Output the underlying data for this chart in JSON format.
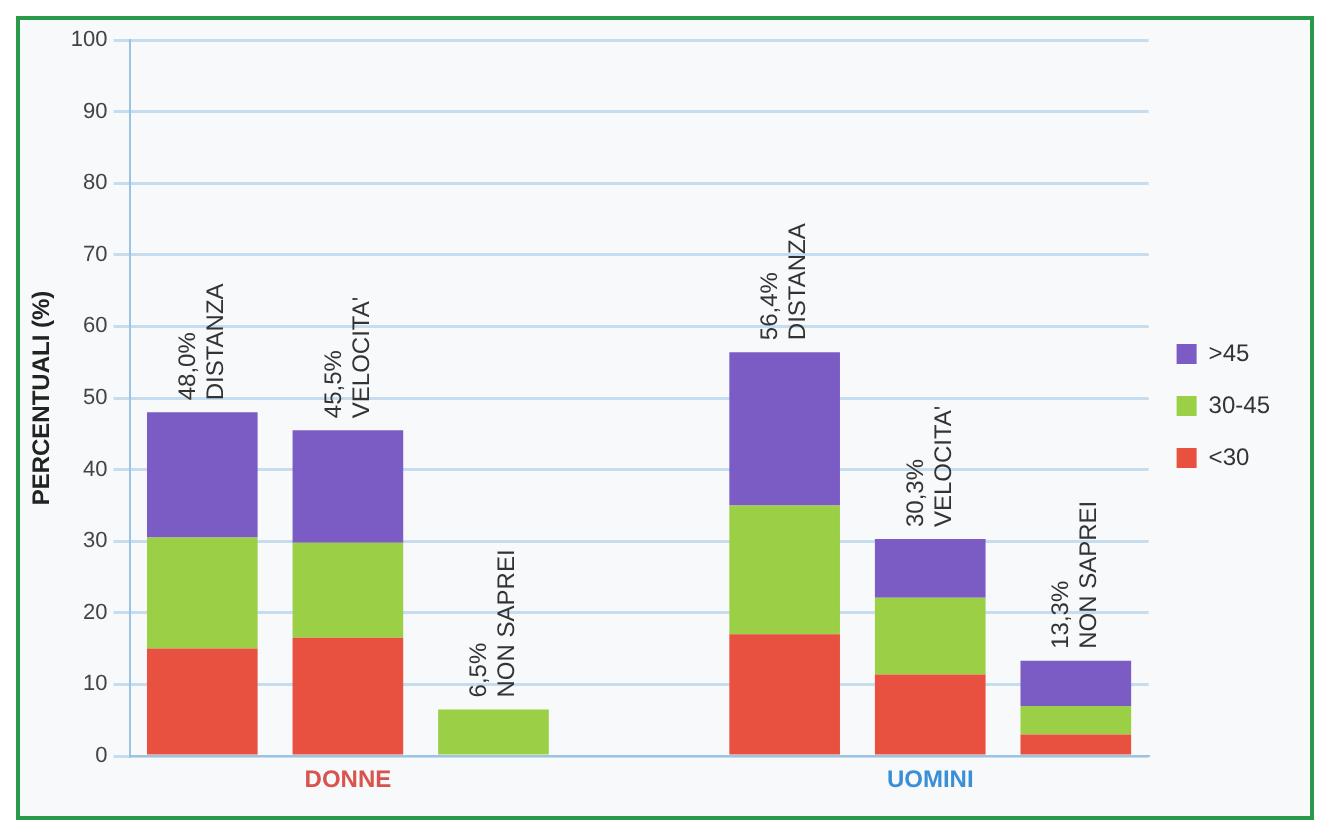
{
  "chart_data": {
    "type": "bar",
    "stacked": true,
    "ylabel": "PERCENTUALI (%)",
    "categories": [
      "DISTANZA",
      "VELOCITA'",
      "NON SAPREI",
      null,
      "DISTANZA",
      "VELOCITA'",
      "NON SAPREI"
    ],
    "series": [
      {
        "name": "<30",
        "color": "#e8503f",
        "values": [
          15,
          16.5,
          null,
          null,
          17,
          11.4,
          3
        ]
      },
      {
        "name": "30-45",
        "color": "#9bcf45",
        "values": [
          15.5,
          13.3,
          6.5,
          null,
          18,
          10.7,
          4
        ]
      },
      {
        "name": ">45",
        "color": "#7b5cc4",
        "values": [
          17.5,
          15.7,
          null,
          null,
          21.4,
          8.2,
          6.3
        ]
      }
    ],
    "totals": [
      "48,0%",
      "45,5%",
      "6,5%",
      null,
      "56,4%",
      "30,3%",
      "13,3%"
    ],
    "annotations": [
      "DONNE",
      "UOMINI"
    ],
    "ylim": [
      0,
      100
    ],
    "yticks": [
      0,
      10,
      20,
      30,
      40,
      50,
      60,
      70,
      80,
      90,
      100
    ],
    "grid": "y",
    "legend": "right"
  }
}
